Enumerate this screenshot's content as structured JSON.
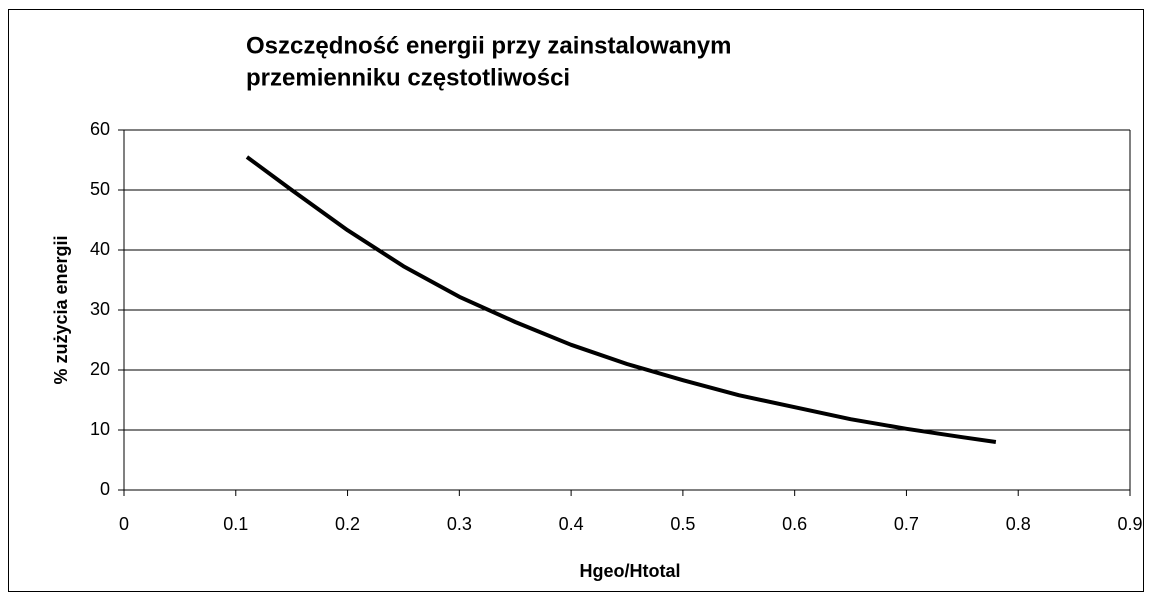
{
  "chart_data": {
    "type": "line",
    "title": [
      "Oszczędność energii przy zainstalowanym",
      "przemienniku częstotliwości"
    ],
    "x_label": "Hgeo/Htotal",
    "y_label": "%  zużycia energii",
    "series": [
      {
        "color": "#000000",
        "x": [
          0.11,
          0.15,
          0.2,
          0.25,
          0.3,
          0.35,
          0.4,
          0.45,
          0.5,
          0.55,
          0.6,
          0.65,
          0.7,
          0.75,
          0.78
        ],
        "values": [
          55.5,
          50,
          43.3,
          37.3,
          32.2,
          28,
          24.2,
          21,
          18.3,
          15.8,
          13.8,
          11.8,
          10.2,
          8.8,
          8
        ]
      }
    ],
    "xlim": [
      0,
      0.9
    ],
    "xticks": [
      0,
      0.1,
      0.2,
      0.3,
      0.4,
      0.5,
      0.6,
      0.7,
      0.8,
      0.9
    ],
    "ylim": [
      0,
      60
    ],
    "yticks": [
      0,
      10,
      20,
      30,
      40,
      50,
      60
    ],
    "grid": true
  }
}
